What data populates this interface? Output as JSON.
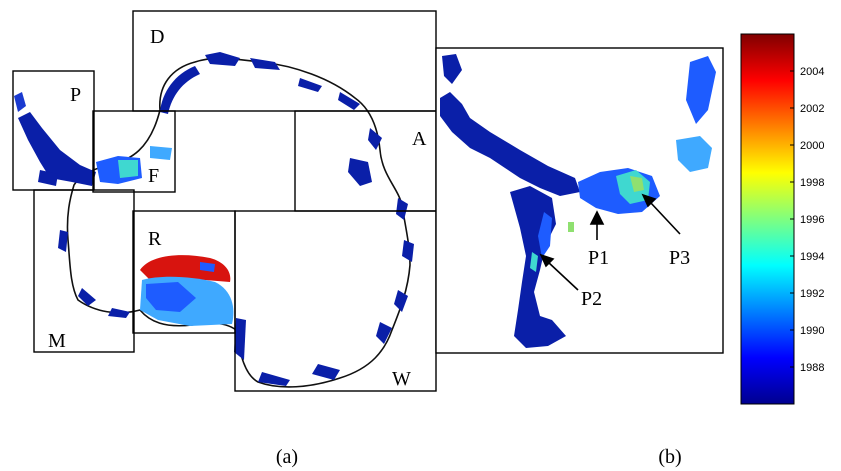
{
  "panel_a": {
    "caption": "(a)",
    "regions": [
      {
        "id": "P",
        "label": "P"
      },
      {
        "id": "D",
        "label": "D"
      },
      {
        "id": "A",
        "label": "A"
      },
      {
        "id": "F",
        "label": "F"
      },
      {
        "id": "R",
        "label": "R"
      },
      {
        "id": "W",
        "label": "W"
      },
      {
        "id": "M",
        "label": "M"
      }
    ]
  },
  "panel_b": {
    "caption": "(b)",
    "points": [
      {
        "id": "P1",
        "label": "P1"
      },
      {
        "id": "P2",
        "label": "P2"
      },
      {
        "id": "P3",
        "label": "P3"
      }
    ]
  },
  "colorbar": {
    "ticks": [
      "2004",
      "2002",
      "2000",
      "1998",
      "1996",
      "1994",
      "1992",
      "1990",
      "1988"
    ],
    "range": [
      1986,
      2006
    ],
    "colormap": "jet"
  },
  "colors": {
    "ice_dark_blue": "#0a1fa8",
    "ice_blue": "#1e5cff",
    "light_blue": "#3fa9ff",
    "cyan": "#3fd8d0",
    "green": "#8fe070",
    "red": "#d8140f",
    "coast": "#111111"
  }
}
